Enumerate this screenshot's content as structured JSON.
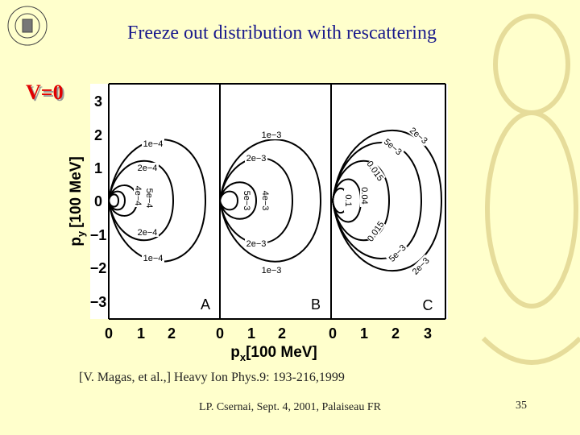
{
  "header": {
    "title": "Freeze out distribution with rescattering"
  },
  "label": "V=0",
  "figure": {
    "y_label": {
      "main": "p",
      "sub": "y",
      "unit": "[100 MeV]"
    },
    "x_label": {
      "main": "p",
      "sub": "x",
      "unit": "[100 MeV]"
    },
    "y_ticks": [
      "3",
      "2",
      "1",
      "0",
      "−1",
      "−2",
      "−3"
    ],
    "panels": [
      {
        "letter": "A",
        "x_ticks": [
          "0",
          "1",
          "2"
        ],
        "contour_labels": [
          "1e−4",
          "2e−4",
          "4e−4",
          "5e−4",
          "2e−4",
          "1e−4"
        ]
      },
      {
        "letter": "B",
        "x_ticks": [
          "0",
          "1",
          "2"
        ],
        "contour_labels": [
          "1e−3",
          "2e−3",
          "4e−3",
          "5e−3",
          "2e−3",
          "1e−3"
        ]
      },
      {
        "letter": "C",
        "x_ticks": [
          "0",
          "1",
          "2",
          "3"
        ],
        "contour_labels": [
          "2e−3",
          "5e−3",
          "0.015",
          "0.04",
          "0.1",
          "0.015",
          "5e−3",
          "2e−3"
        ]
      }
    ]
  },
  "citation": "[V. Magas, et al.,] Heavy Ion Phys.9: 193-216,1999",
  "footer": "LP. Csernai, Sept. 4, 2001, Palaiseau FR",
  "page_number": "35"
}
